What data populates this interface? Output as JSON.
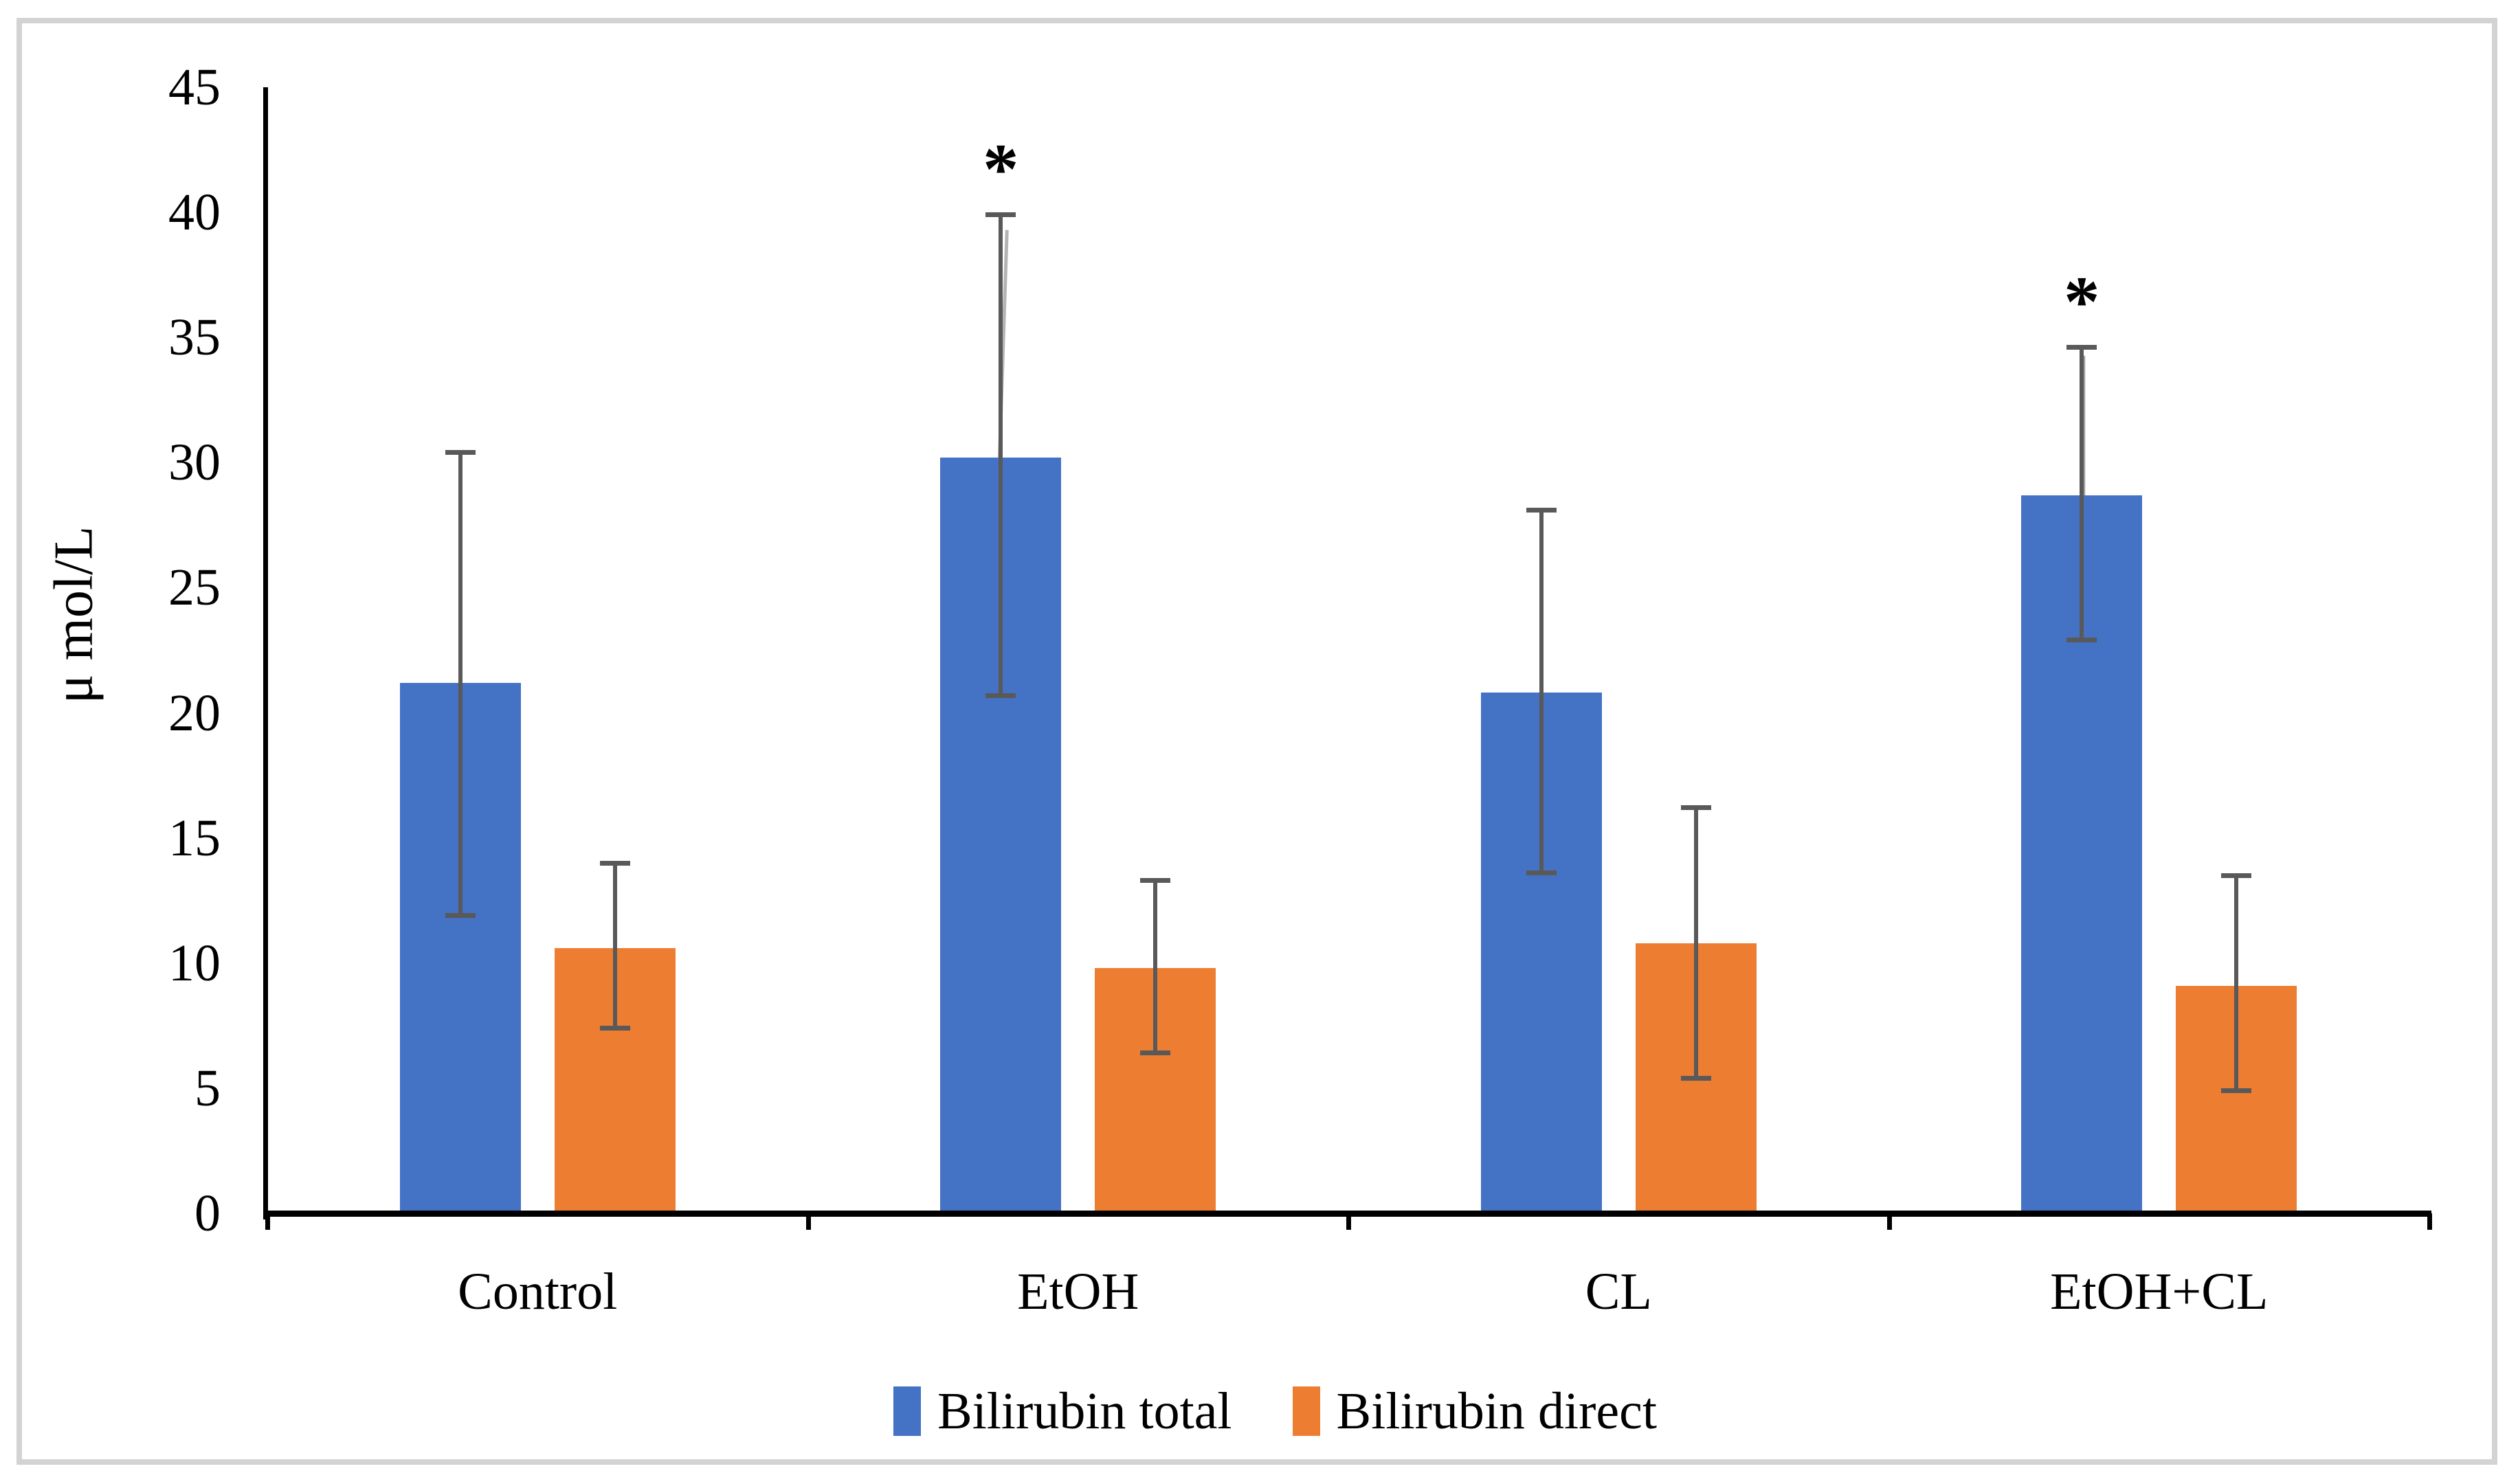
{
  "figure": {
    "background": "#FFFFFF",
    "border_color": "#D3D3D3",
    "axis_color": "#000000",
    "text_color": "#000000"
  },
  "chart_data": {
    "type": "bar",
    "title": "",
    "xlabel": "",
    "ylabel": "μ mol/L",
    "ylim": [
      0,
      45
    ],
    "ytick_step": 5,
    "yticks": [
      45,
      40,
      35,
      30,
      25,
      20,
      15,
      10,
      5,
      0
    ],
    "grid": false,
    "legend_position": "bottom",
    "categories": [
      "Control",
      "EtOH",
      "CL",
      "EtOH+CL"
    ],
    "series": [
      {
        "name": "Bilirubin total",
        "color": "#4472C4",
        "values": [
          21.2,
          30.2,
          20.8,
          28.7
        ],
        "error_high": [
          30.4,
          39.9,
          28.1,
          34.6
        ],
        "error_low": [
          11.9,
          20.7,
          13.6,
          22.9
        ],
        "annotations": [
          "",
          "*",
          "",
          "*"
        ]
      },
      {
        "name": "Bilirubin direct",
        "color": "#ED7D31",
        "values": [
          10.6,
          9.8,
          10.8,
          9.1
        ],
        "error_high": [
          14.0,
          13.3,
          16.2,
          13.5
        ],
        "error_low": [
          7.4,
          6.4,
          5.4,
          4.9
        ],
        "annotations": [
          "",
          "",
          "",
          ""
        ]
      }
    ],
    "error_bar_color": "#595959",
    "annotation_symbol": "*",
    "artifacts": [
      {
        "series": "Bilirubin total",
        "category": "EtOH",
        "kind": "diagonal-ghost",
        "color": "#B4B4B4"
      },
      {
        "series": "Bilirubin total",
        "category": "EtOH+CL",
        "kind": "light-upper-segment",
        "color": "#A0A0A0"
      }
    ]
  }
}
